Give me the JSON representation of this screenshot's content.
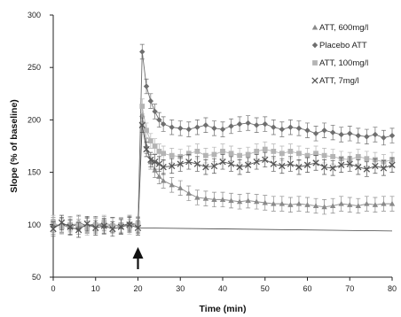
{
  "chart_data": {
    "type": "line",
    "xlabel": "Time (min)",
    "ylabel": "Slope (% of baseline)",
    "xlim": [
      0,
      80
    ],
    "ylim": [
      50,
      300
    ],
    "x_ticks": [
      0,
      10,
      20,
      30,
      40,
      50,
      60,
      70,
      80
    ],
    "y_ticks": [
      50,
      100,
      150,
      200,
      250,
      300
    ],
    "grid": false,
    "legend_position": "top-right",
    "baseline_reference": {
      "from_x": 20,
      "to_x": 80,
      "y_start": 97,
      "y_end": 94
    },
    "annotation": {
      "type": "arrow",
      "x": 20
    },
    "series": [
      {
        "name": "ATT, 600mg/l",
        "marker": "triangle",
        "color": "#8a8a8a",
        "x": [
          0,
          2,
          4,
          6,
          8,
          10,
          12,
          14,
          16,
          18,
          20,
          21,
          22,
          23,
          24,
          25,
          26,
          28,
          30,
          32,
          34,
          36,
          38,
          40,
          42,
          44,
          46,
          48,
          50,
          52,
          54,
          56,
          58,
          60,
          62,
          64,
          66,
          68,
          70,
          72,
          74,
          76,
          78,
          80
        ],
        "y": [
          100,
          99,
          101,
          98,
          100,
          99,
          101,
          100,
          98,
          102,
          100,
          205,
          175,
          160,
          152,
          146,
          142,
          138,
          135,
          130,
          126,
          125,
          124,
          124,
          123,
          122,
          123,
          122,
          121,
          120,
          120,
          119,
          120,
          119,
          118,
          117,
          118,
          120,
          119,
          118,
          120,
          119,
          120,
          120
        ]
      },
      {
        "name": "Placebo ATT",
        "marker": "diamond",
        "color": "#6e6e6e",
        "x": [
          0,
          2,
          4,
          6,
          8,
          10,
          12,
          14,
          16,
          18,
          20,
          21,
          22,
          23,
          24,
          25,
          26,
          28,
          30,
          32,
          34,
          36,
          38,
          40,
          42,
          44,
          46,
          48,
          50,
          52,
          54,
          56,
          58,
          60,
          62,
          64,
          66,
          68,
          70,
          72,
          74,
          76,
          78,
          80
        ],
        "y": [
          98,
          100,
          97,
          102,
          99,
          101,
          98,
          100,
          99,
          101,
          99,
          265,
          232,
          218,
          208,
          200,
          196,
          193,
          192,
          191,
          193,
          195,
          192,
          191,
          194,
          196,
          197,
          195,
          196,
          193,
          191,
          193,
          192,
          190,
          187,
          190,
          188,
          186,
          187,
          185,
          184,
          186,
          183,
          185
        ]
      },
      {
        "name": "ATT, 100mg/l",
        "marker": "square",
        "color": "#b4b4b4",
        "x": [
          0,
          2,
          4,
          6,
          8,
          10,
          12,
          14,
          16,
          18,
          20,
          21,
          22,
          23,
          24,
          25,
          26,
          28,
          30,
          32,
          34,
          36,
          38,
          40,
          42,
          44,
          46,
          48,
          50,
          52,
          54,
          56,
          58,
          60,
          62,
          64,
          66,
          68,
          70,
          72,
          74,
          76,
          78,
          80
        ],
        "y": [
          102,
          98,
          100,
          101,
          97,
          100,
          102,
          99,
          100,
          98,
          101,
          213,
          190,
          180,
          175,
          170,
          168,
          166,
          165,
          168,
          170,
          166,
          167,
          170,
          168,
          166,
          167,
          170,
          172,
          170,
          168,
          170,
          168,
          166,
          168,
          166,
          165,
          163,
          162,
          165,
          163,
          162,
          160,
          162
        ]
      },
      {
        "name": "ATT, 7mg/l",
        "marker": "x",
        "color": "#555555",
        "x": [
          0,
          2,
          4,
          6,
          8,
          10,
          12,
          14,
          16,
          18,
          20,
          21,
          22,
          23,
          24,
          25,
          26,
          28,
          30,
          32,
          34,
          36,
          38,
          40,
          42,
          44,
          46,
          48,
          50,
          52,
          54,
          56,
          58,
          60,
          62,
          64,
          66,
          68,
          70,
          72,
          74,
          76,
          78,
          80
        ],
        "y": [
          96,
          102,
          98,
          95,
          101,
          97,
          99,
          96,
          98,
          100,
          97,
          195,
          172,
          162,
          160,
          158,
          155,
          156,
          158,
          160,
          158,
          155,
          156,
          160,
          158,
          155,
          157,
          160,
          162,
          158,
          156,
          158,
          155,
          157,
          159,
          155,
          154,
          157,
          158,
          155,
          153,
          156,
          154,
          157
        ]
      }
    ],
    "error_bar": 7
  }
}
